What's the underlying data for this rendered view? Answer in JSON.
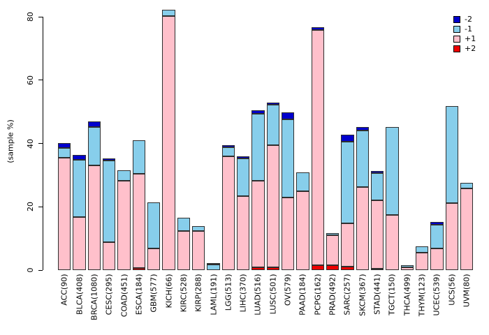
{
  "chart_data": {
    "type": "bar",
    "stacked": true,
    "ylabel": "(sample %)",
    "ylim": [
      0,
      82.5
    ],
    "yticks": [
      "0",
      "20",
      "40",
      "60",
      "80"
    ],
    "ytick_values": [
      0,
      20,
      40,
      60,
      80
    ],
    "grid": false,
    "legend_position": "top-right",
    "legend": [
      {
        "label": "-2",
        "color": "#0000CD"
      },
      {
        "label": "-1",
        "color": "#87CEEB"
      },
      {
        "label": "+1",
        "color": "#FFC0CB"
      },
      {
        "label": "+2",
        "color": "#EE0000"
      }
    ],
    "categories": [
      "ACC(90)",
      "BLCA(408)",
      "BRCA(1080)",
      "CESC(295)",
      "COAD(451)",
      "ESCA(184)",
      "GBM(577)",
      "KICH(66)",
      "KIRC(528)",
      "KIRP(288)",
      "LAML(191)",
      "LGG(513)",
      "LIHC(370)",
      "LUAD(516)",
      "LUSC(501)",
      "OV(579)",
      "PAAD(184)",
      "PCPG(162)",
      "PRAD(492)",
      "SARC(257)",
      "SKCM(367)",
      "STAD(441)",
      "TGCT(150)",
      "THCA(499)",
      "THYM(123)",
      "UCEC(539)",
      "UCS(56)",
      "UVM(80)"
    ],
    "series": [
      {
        "name": "+2",
        "color": "#EE0000",
        "values": [
          0,
          0,
          0,
          0,
          0,
          0.7,
          0,
          0,
          0,
          0,
          0,
          0,
          0,
          0.8,
          0.8,
          0,
          0,
          1.6,
          1.6,
          1.0,
          0,
          0.5,
          0,
          0,
          0,
          0,
          0,
          0
        ]
      },
      {
        "name": "+1",
        "color": "#FFC0CB",
        "values": [
          35.5,
          16.7,
          33.0,
          8.8,
          28.2,
          29.7,
          6.9,
          80.3,
          12.4,
          12.4,
          0,
          36.0,
          23.4,
          27.3,
          38.6,
          23.0,
          24.9,
          74.2,
          9.4,
          13.7,
          26.2,
          21.6,
          17.5,
          0.8,
          5.4,
          6.9,
          21.2,
          25.8
        ]
      },
      {
        "name": "-1",
        "color": "#87CEEB",
        "values": [
          3.0,
          18.1,
          12.1,
          25.9,
          3.4,
          10.7,
          14.5,
          1.9,
          4.1,
          1.5,
          1.7,
          2.7,
          11.9,
          21.3,
          12.9,
          24.5,
          5.9,
          0,
          0.7,
          25.9,
          17.9,
          8.5,
          27.6,
          0.7,
          2.2,
          7.5,
          30.6,
          1.7
        ]
      },
      {
        "name": "-2",
        "color": "#0000CD",
        "values": [
          1.6,
          1.6,
          1.8,
          0.6,
          0,
          0,
          0,
          0,
          0,
          0,
          0.6,
          0.8,
          0.6,
          1.0,
          0.7,
          2.2,
          0,
          1.0,
          0,
          2.2,
          1.0,
          0.7,
          0,
          0,
          0,
          0.9,
          0,
          0
        ]
      }
    ]
  }
}
